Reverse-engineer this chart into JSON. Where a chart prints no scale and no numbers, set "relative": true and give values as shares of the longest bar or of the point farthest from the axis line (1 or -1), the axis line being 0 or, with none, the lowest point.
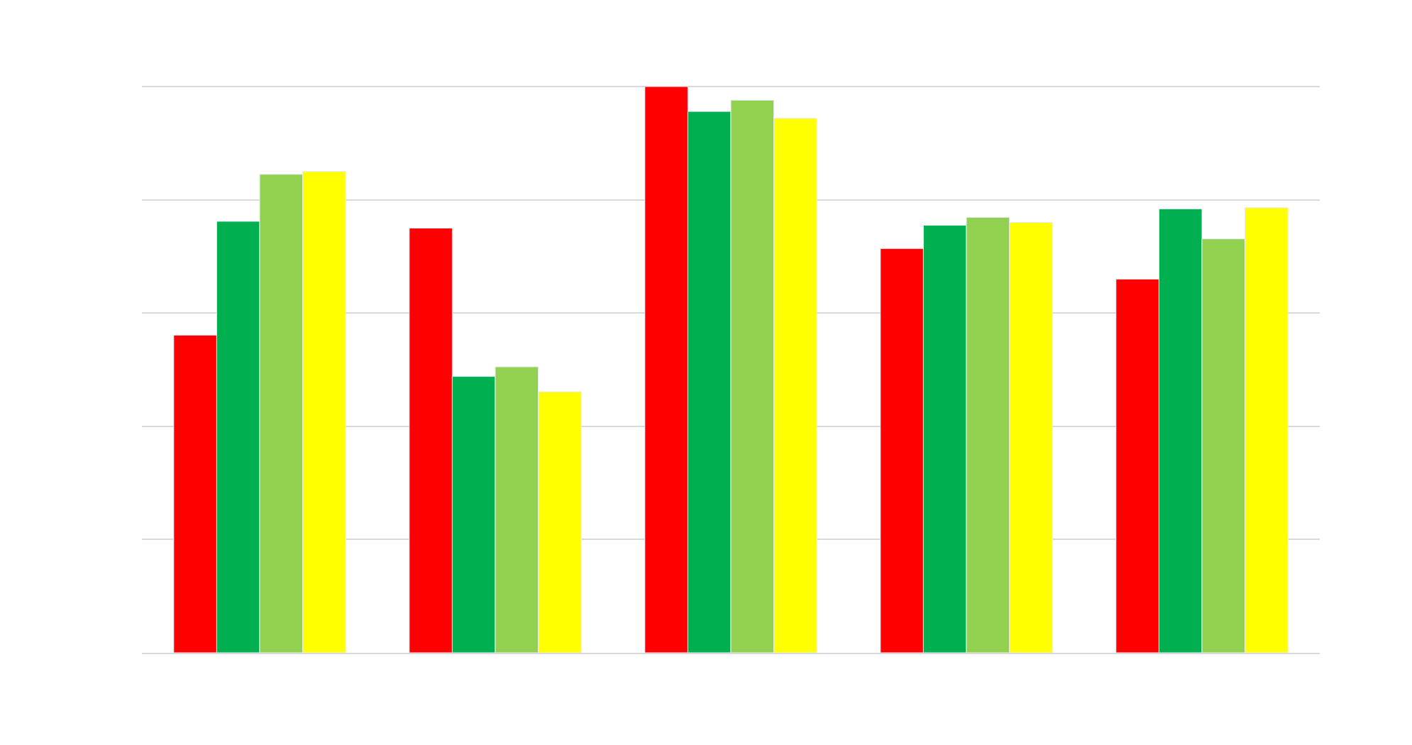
{
  "chart_data": {
    "type": "bar",
    "relative": true,
    "categories": [
      null,
      null,
      null,
      null,
      null
    ],
    "series": [
      {
        "color": "#ff0000",
        "values": [
          0.561,
          0.75,
          1,
          0.714,
          0.66
        ]
      },
      {
        "color": "#00b050",
        "values": [
          0.762,
          0.488,
          0.956,
          0.755,
          0.784
        ]
      },
      {
        "color": "#92d050",
        "values": [
          0.845,
          0.505,
          0.976,
          0.769,
          0.731
        ]
      },
      {
        "color": "#ffff00",
        "values": [
          0.85,
          0.461,
          0.944,
          0.76,
          0.786
        ]
      }
    ],
    "grid": "y"
  }
}
